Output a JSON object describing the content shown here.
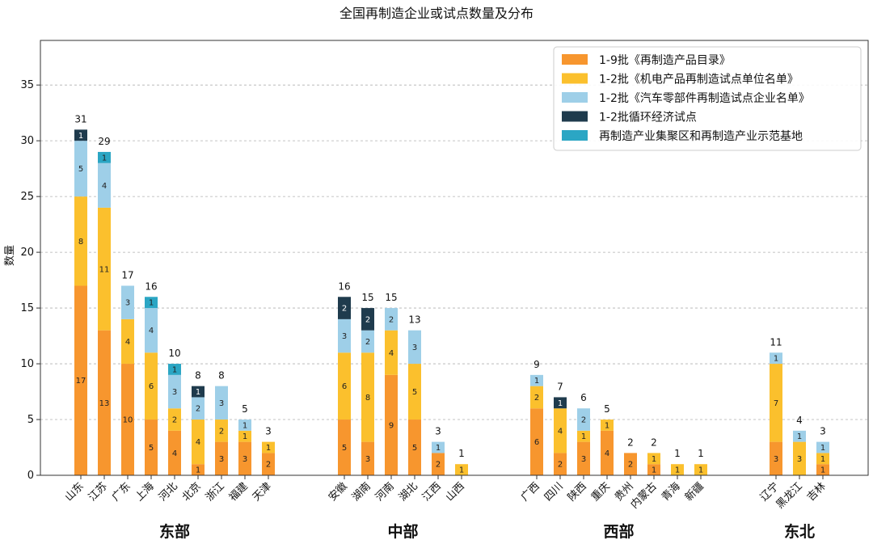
{
  "chart_data": {
    "type": "bar",
    "stacked": true,
    "title": "全国再制造企业或试点数量及分布",
    "ylabel": "数量",
    "xlabel": "",
    "ylim": [
      0,
      39
    ],
    "yticks": [
      0,
      5,
      10,
      15,
      20,
      25,
      30,
      35
    ],
    "grid": "horizontal-dashed",
    "legend_position": "top-right",
    "series": [
      {
        "name": "1-9批《再制造产品目录》",
        "color": "#F7962E"
      },
      {
        "name": "1-2批《机电产品再制造试点单位名单》",
        "color": "#FBC02D"
      },
      {
        "name": "1-2批《汽车零部件再制造试点企业名单》",
        "color": "#9ECFE8"
      },
      {
        "name": "1-2批循环经济试点",
        "color": "#1F3B4D"
      },
      {
        "name": "再制造产业集聚区和再制造产业示范基地",
        "color": "#2BA6C4"
      }
    ],
    "groups": [
      {
        "name": "东部",
        "categories": [
          {
            "name": "山东",
            "values": [
              17,
              8,
              5,
              1,
              0
            ],
            "total": 31
          },
          {
            "name": "江苏",
            "values": [
              13,
              11,
              4,
              0,
              1
            ],
            "total": 29
          },
          {
            "name": "广东",
            "values": [
              10,
              4,
              3,
              0,
              0
            ],
            "total": 17
          },
          {
            "name": "上海",
            "values": [
              5,
              6,
              4,
              0,
              1
            ],
            "total": 16
          },
          {
            "name": "河北",
            "values": [
              4,
              2,
              3,
              0,
              1
            ],
            "total": 10
          },
          {
            "name": "北京",
            "values": [
              1,
              4,
              2,
              1,
              0
            ],
            "total": 8
          },
          {
            "name": "浙江",
            "values": [
              3,
              2,
              3,
              0,
              0
            ],
            "total": 8
          },
          {
            "name": "福建",
            "values": [
              3,
              1,
              1,
              0,
              0
            ],
            "total": 5
          },
          {
            "name": "天津",
            "values": [
              2,
              1,
              0,
              0,
              0
            ],
            "total": 3
          }
        ]
      },
      {
        "name": "中部",
        "categories": [
          {
            "name": "安徽",
            "values": [
              5,
              6,
              3,
              2,
              0
            ],
            "total": 16
          },
          {
            "name": "湖南",
            "values": [
              3,
              8,
              2,
              2,
              0
            ],
            "total": 15
          },
          {
            "name": "河南",
            "values": [
              9,
              4,
              2,
              0,
              0
            ],
            "total": 15
          },
          {
            "name": "湖北",
            "values": [
              5,
              5,
              3,
              0,
              0
            ],
            "total": 13
          },
          {
            "name": "江西",
            "values": [
              2,
              0,
              1,
              0,
              0
            ],
            "total": 3
          },
          {
            "name": "山西",
            "values": [
              0,
              1,
              0,
              0,
              0
            ],
            "total": 1
          }
        ]
      },
      {
        "name": "西部",
        "categories": [
          {
            "name": "广西",
            "values": [
              6,
              2,
              1,
              0,
              0
            ],
            "total": 9
          },
          {
            "name": "四川",
            "values": [
              2,
              4,
              0,
              1,
              0
            ],
            "total": 7
          },
          {
            "name": "陕西",
            "values": [
              3,
              1,
              2,
              0,
              0
            ],
            "total": 6
          },
          {
            "name": "重庆",
            "values": [
              4,
              1,
              0,
              0,
              0
            ],
            "total": 5
          },
          {
            "name": "贵州",
            "values": [
              2,
              0,
              0,
              0,
              0
            ],
            "total": 2
          },
          {
            "name": "内蒙古",
            "values": [
              1,
              1,
              0,
              0,
              0
            ],
            "total": 2
          },
          {
            "name": "青海",
            "values": [
              0,
              1,
              0,
              0,
              0
            ],
            "total": 1
          },
          {
            "name": "新疆",
            "values": [
              0,
              1,
              0,
              0,
              0
            ],
            "total": 1
          }
        ]
      },
      {
        "name": "东北",
        "categories": [
          {
            "name": "辽宁",
            "values": [
              3,
              7,
              1,
              0,
              0
            ],
            "total": 11
          },
          {
            "name": "黑龙江",
            "values": [
              0,
              3,
              1,
              0,
              0
            ],
            "total": 4
          },
          {
            "name": "吉林",
            "values": [
              1,
              1,
              1,
              0,
              0
            ],
            "total": 3
          }
        ]
      }
    ]
  }
}
